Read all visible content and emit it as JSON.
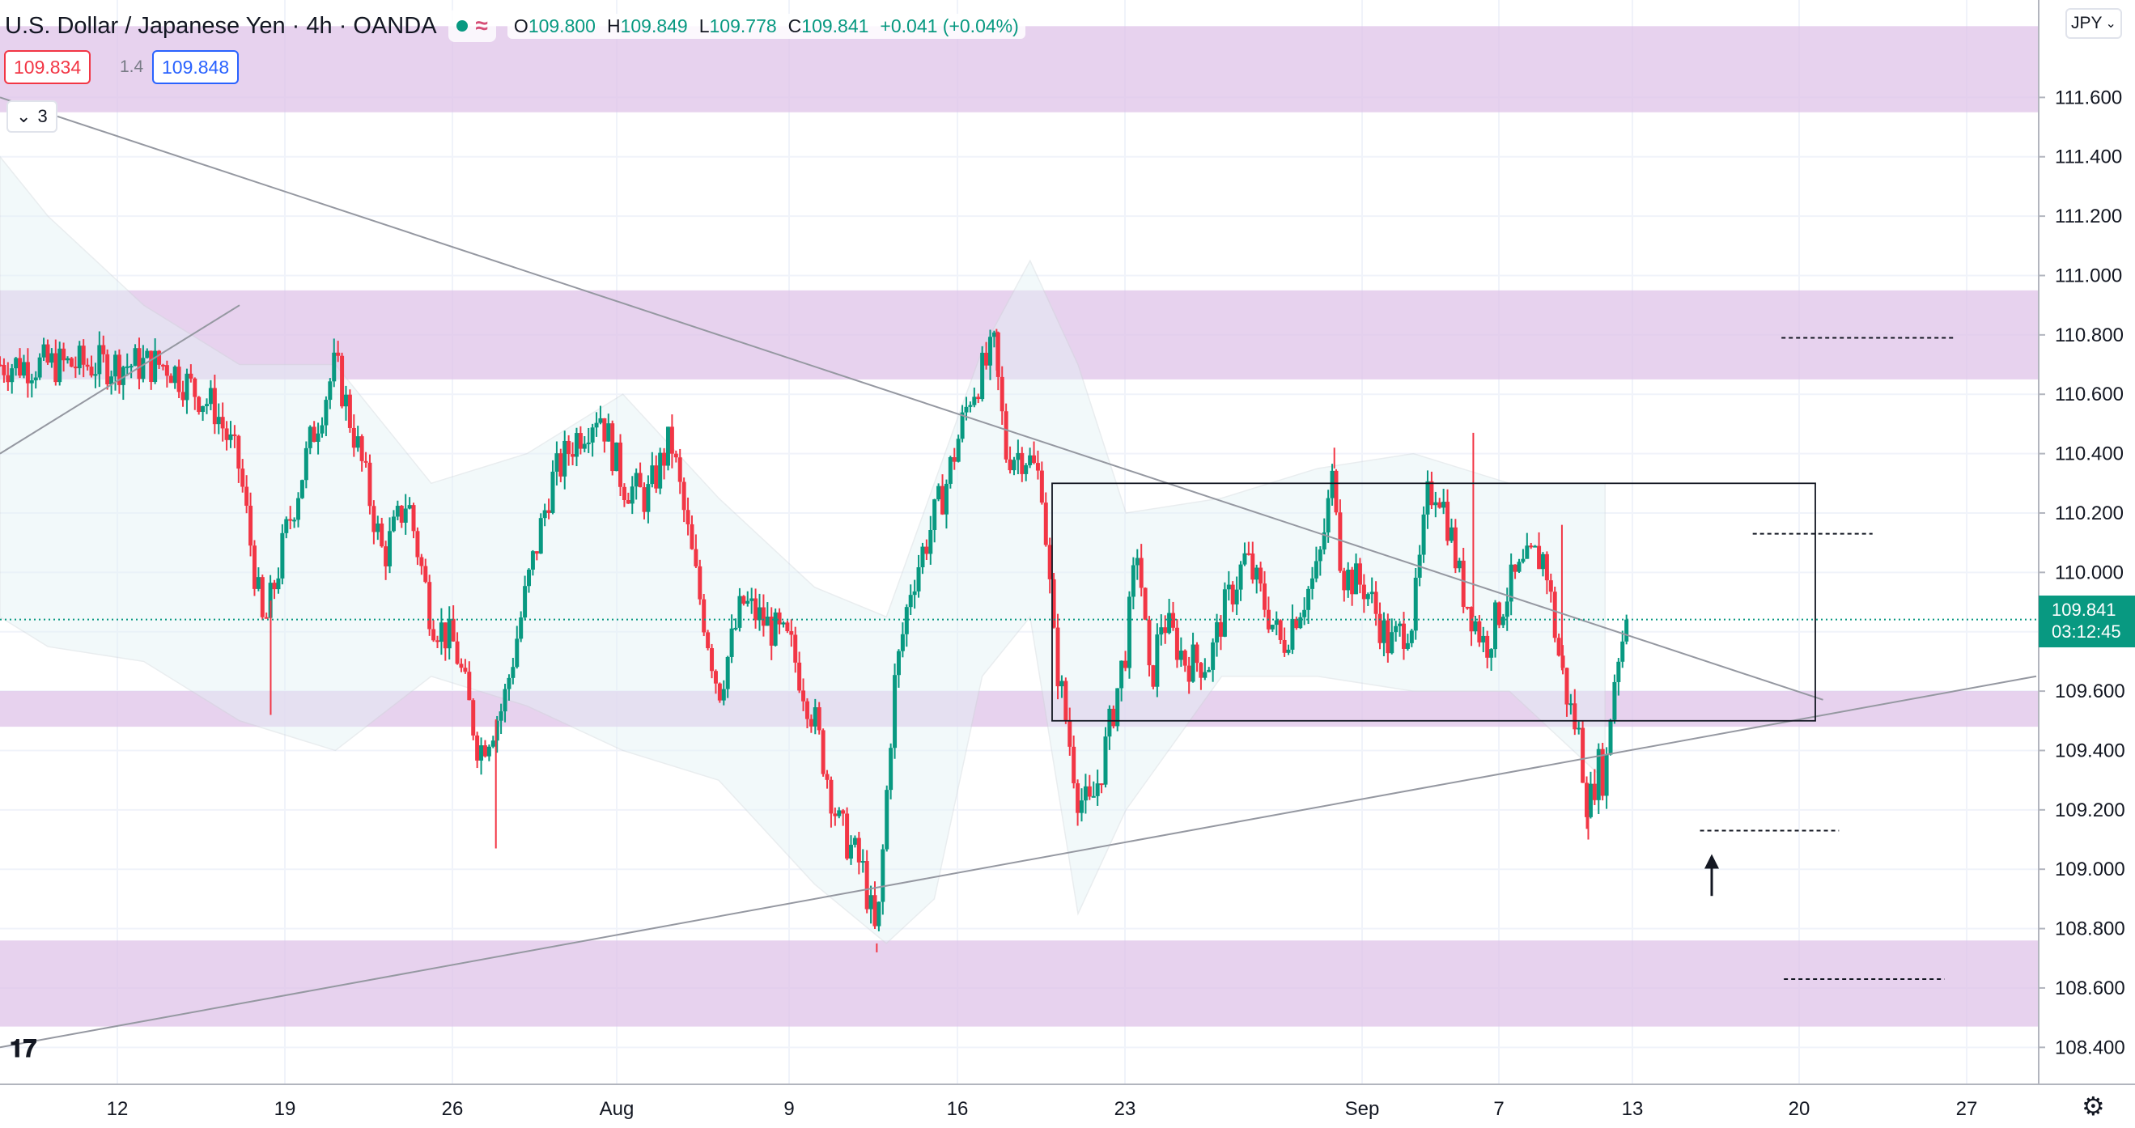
{
  "header": {
    "title": "U.S. Dollar / Japanese Yen · 4h · OANDA",
    "ohlc": [
      {
        "key": "O",
        "value": "109.800"
      },
      {
        "key": "H",
        "value": "109.849"
      },
      {
        "key": "L",
        "value": "109.778"
      },
      {
        "key": "C",
        "value": "109.841"
      }
    ],
    "change": "+0.041 (+0.04%)",
    "sell_price": "109.834",
    "spread": "1.4",
    "buy_price": "109.848",
    "indicators_count": "3",
    "currency": "JPY",
    "current_price": "109.841",
    "countdown": "03:12:45"
  },
  "colors": {
    "up": "#089981",
    "down": "#f23645",
    "zone": "#dfc3e8",
    "bands": "#e3f2f6",
    "trendline": "#9598a1"
  },
  "icons": [
    "tradingview-logo-icon",
    "settings-gear-icon",
    "chevron-down-icon",
    "status-dot-icon",
    "wave-icon"
  ],
  "chart_data": {
    "type": "candlestick",
    "symbol": "USDJPY",
    "timeframe": "4h",
    "x_ticks": [
      "12",
      "19",
      "26",
      "Aug",
      "9",
      "16",
      "23",
      "Sep",
      "7",
      "13",
      "20",
      "27"
    ],
    "y_ticks": [
      "108.400",
      "108.600",
      "108.800",
      "109.000",
      "109.200",
      "109.400",
      "109.600",
      "109.800",
      "110.000",
      "110.200",
      "110.400",
      "110.600",
      "110.800",
      "111.000",
      "111.200",
      "111.400",
      "111.600"
    ],
    "y_range": [
      108.33,
      111.83
    ],
    "last_price": 109.841,
    "swing_path": [
      [
        7,
        110.7
      ],
      [
        8,
        110.62
      ],
      [
        9,
        110.55
      ],
      [
        10,
        110.35
      ],
      [
        11,
        109.8
      ],
      [
        12,
        110.15
      ],
      [
        13,
        110.45
      ],
      [
        14,
        110.7
      ],
      [
        15,
        110.4
      ],
      [
        16,
        110.05
      ],
      [
        17,
        110.25
      ],
      [
        18,
        109.85
      ],
      [
        19,
        109.75
      ],
      [
        20,
        109.4
      ],
      [
        21,
        109.55
      ],
      [
        22,
        109.95
      ],
      [
        23,
        110.3
      ],
      [
        24,
        110.45
      ],
      [
        25,
        110.55
      ],
      [
        26,
        110.3
      ],
      [
        27,
        110.25
      ],
      [
        28,
        110.45
      ],
      [
        29,
        110.0
      ],
      [
        30,
        109.6
      ],
      [
        31,
        109.9
      ],
      [
        33,
        109.75
      ],
      [
        34,
        109.5
      ],
      [
        35,
        109.15
      ],
      [
        36,
        109.0
      ],
      [
        36.6,
        108.75
      ],
      [
        37.3,
        109.6
      ],
      [
        38,
        109.95
      ],
      [
        39.5,
        110.3
      ],
      [
        40.5,
        110.6
      ],
      [
        41.5,
        110.75
      ],
      [
        42,
        110.4
      ],
      [
        42.8,
        110.4
      ],
      [
        43.5,
        110.3
      ],
      [
        44,
        109.75
      ],
      [
        45,
        109.25
      ],
      [
        45.5,
        109.2
      ],
      [
        46,
        109.35
      ],
      [
        47,
        109.75
      ],
      [
        47.5,
        110.1
      ],
      [
        48,
        109.6
      ],
      [
        48.5,
        109.85
      ],
      [
        49.5,
        109.7
      ],
      [
        50.5,
        109.7
      ],
      [
        51,
        109.85
      ],
      [
        52,
        110.05
      ],
      [
        53,
        109.85
      ],
      [
        53.5,
        109.75
      ],
      [
        54,
        109.85
      ],
      [
        55,
        110.0
      ],
      [
        55.7,
        110.35
      ],
      [
        56,
        110.0
      ],
      [
        57,
        109.95
      ],
      [
        58,
        109.75
      ],
      [
        59,
        109.85
      ],
      [
        59.6,
        110.25
      ],
      [
        60,
        110.3
      ],
      [
        60.5,
        110.15
      ],
      [
        61,
        109.95
      ],
      [
        62,
        109.75
      ],
      [
        63,
        109.95
      ],
      [
        64,
        110.05
      ],
      [
        64.5,
        110.05
      ],
      [
        65,
        109.75
      ],
      [
        65.5,
        109.55
      ],
      [
        65.9,
        109.45
      ],
      [
        66.3,
        109.2
      ],
      [
        66.7,
        109.35
      ],
      [
        67,
        109.3
      ],
      [
        67.3,
        109.6
      ],
      [
        67.6,
        109.75
      ],
      [
        68,
        109.84
      ]
    ],
    "extra_wicks": [
      {
        "x": 11.3,
        "low": 109.52
      },
      {
        "x": 20.7,
        "low": 109.07
      },
      {
        "x": 36.6,
        "low": 108.72
      },
      {
        "x": 41.6,
        "high": 110.82
      },
      {
        "x": 55.7,
        "high": 110.42
      },
      {
        "x": 61.5,
        "high": 110.47
      },
      {
        "x": 66.3,
        "low": 109.1
      },
      {
        "x": 65.2,
        "high": 110.16
      }
    ],
    "bollinger": {
      "upper": [
        [
          0,
          111.4
        ],
        [
          2,
          111.2
        ],
        [
          6,
          110.9
        ],
        [
          10,
          110.7
        ],
        [
          14,
          110.7
        ],
        [
          18,
          110.3
        ],
        [
          22,
          110.4
        ],
        [
          26,
          110.6
        ],
        [
          30,
          110.25
        ],
        [
          34,
          109.95
        ],
        [
          37,
          109.85
        ],
        [
          39,
          110.3
        ],
        [
          41,
          110.75
        ],
        [
          43,
          111.05
        ],
        [
          45,
          110.7
        ],
        [
          47,
          110.2
        ],
        [
          51,
          110.25
        ],
        [
          55,
          110.35
        ],
        [
          59,
          110.4
        ],
        [
          63,
          110.3
        ],
        [
          67,
          110.3
        ]
      ],
      "lower": [
        [
          0,
          109.85
        ],
        [
          2,
          109.75
        ],
        [
          6,
          109.7
        ],
        [
          10,
          109.5
        ],
        [
          14,
          109.4
        ],
        [
          18,
          109.65
        ],
        [
          22,
          109.55
        ],
        [
          26,
          109.4
        ],
        [
          30,
          109.3
        ],
        [
          34,
          108.95
        ],
        [
          37,
          108.75
        ],
        [
          39,
          108.9
        ],
        [
          41,
          109.65
        ],
        [
          43,
          109.85
        ],
        [
          45,
          108.85
        ],
        [
          47,
          109.2
        ],
        [
          51,
          109.65
        ],
        [
          55,
          109.65
        ],
        [
          59,
          109.6
        ],
        [
          63,
          109.6
        ],
        [
          67,
          109.3
        ]
      ]
    },
    "zones": [
      {
        "low": 111.55,
        "high": 111.84
      },
      {
        "low": 110.65,
        "high": 110.95
      },
      {
        "low": 109.48,
        "high": 109.6
      },
      {
        "low": 108.47,
        "high": 108.76
      }
    ],
    "trendlines": [
      {
        "from": [
          0,
          111.6
        ],
        "to": [
          60,
          110.0
        ]
      },
      {
        "from": [
          0,
          108.4
        ],
        "to": [
          68,
          109.4
        ]
      },
      {
        "from": [
          0,
          110.4
        ],
        "to": [
          10,
          110.9
        ]
      }
    ],
    "range_box": {
      "top": 110.3,
      "bottom": 109.5
    },
    "dashed_levels": [
      {
        "y": 110.79,
        "x1": 59.5,
        "x2": 66.7
      },
      {
        "y": 110.13,
        "x1": 58.3,
        "x2": 63.3
      },
      {
        "y": 109.13,
        "x1": 56.1,
        "x2": 61.9
      },
      {
        "y": 108.63,
        "x1": 59.6,
        "x2": 66.3
      }
    ],
    "annotation": {
      "type": "arrow-up",
      "x": 57.3,
      "price_top": 109.04,
      "price_bottom": 108.91
    }
  }
}
